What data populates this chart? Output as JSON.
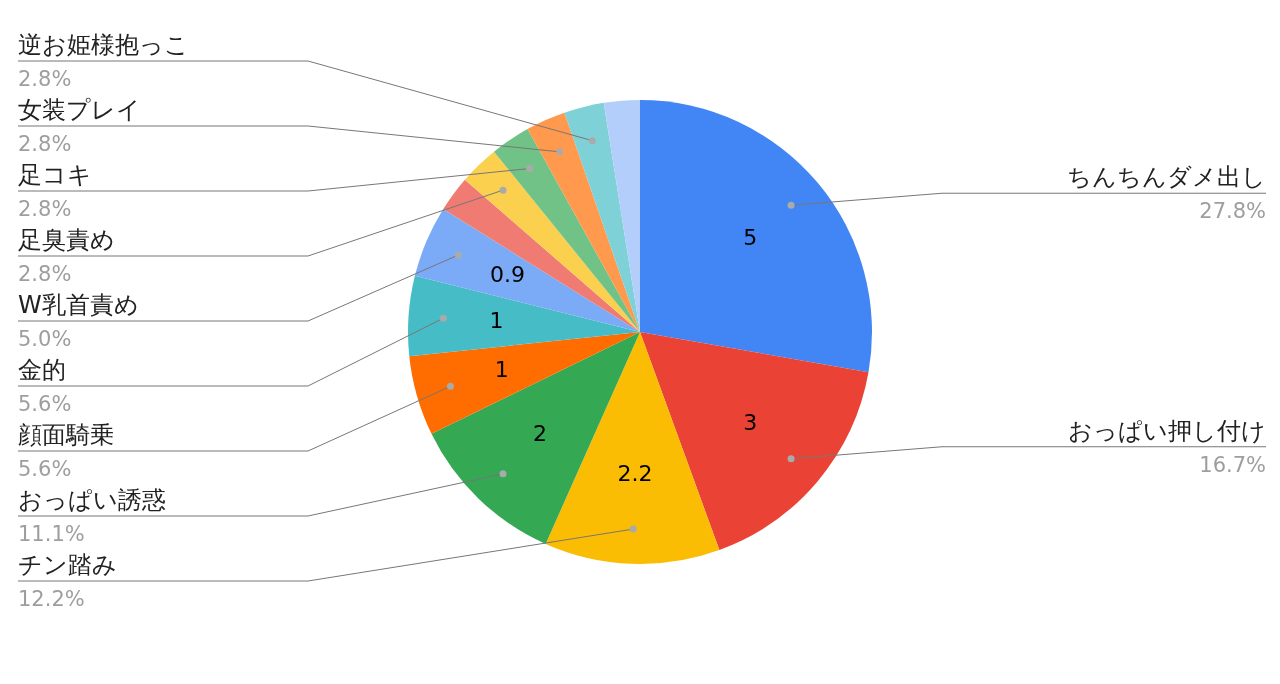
{
  "chart_data": {
    "type": "pie",
    "categories": [
      "ちんちんダメ出し",
      "おっぱい押し付け",
      "チン踏み",
      "おっぱい誘惑",
      "顔面騎乗",
      "金的",
      "W乳首責め",
      null,
      "足臭責め",
      "足コキ",
      "女装プレイ",
      "逆お姫様抱っこ",
      null
    ],
    "values": [
      5,
      3,
      2.2,
      2,
      1,
      1,
      0.9,
      0.45,
      0.5,
      0.5,
      0.5,
      0.5,
      0.45
    ],
    "annotations": [
      "27.8%",
      "16.7%",
      "12.2%",
      "11.1%",
      "5.6%",
      "5.6%",
      "5.0%",
      "2.8%",
      "2.8%",
      "2.8%",
      "2.8%"
    ],
    "value_labels": [
      "5",
      "3",
      "2.2",
      "2",
      "1",
      "1",
      "0.9",
      null,
      null,
      null,
      null,
      null,
      null
    ],
    "colors": [
      "#4285f4",
      "#ea4335",
      "#fbbc04",
      "#34a853",
      "#ff6d01",
      "#46bdc6",
      "#7baaf7",
      "#f07b72",
      "#fcd04f",
      "#71c287",
      "#ff994d",
      "#7ed1d7",
      "#b3cefb"
    ]
  }
}
